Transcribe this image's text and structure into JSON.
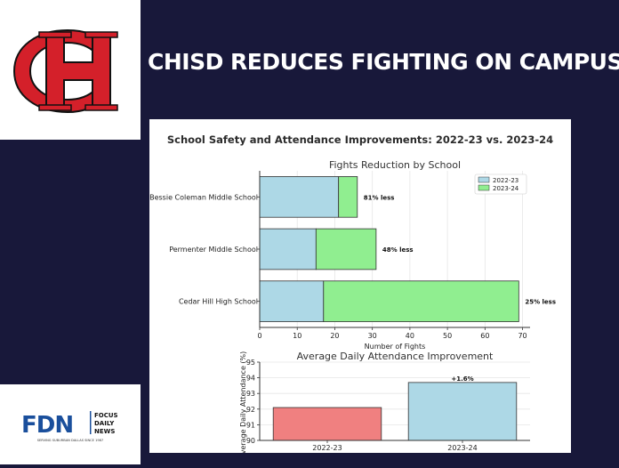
{
  "headline": "CHISD REDUCES FIGHTING ON CAMPUSES",
  "logo": {
    "mark": "CH",
    "name": "chisd-logo"
  },
  "publisher": {
    "abbr": "FDN",
    "line1": "FOCUS",
    "line2": "DAILY",
    "line3": "NEWS",
    "tagline": "SERVING SUBURBAN DALLAS SINCE 1987"
  },
  "colors": {
    "background": "#18183a",
    "logo_red": "#d4202a",
    "bar_2022": "#add8e6",
    "bar_2023": "#90ee90",
    "bar_attend_2022": "#f08080",
    "fdn_blue": "#1a4f9c"
  },
  "figure_title": "School Safety and Attendance Improvements: 2022-23 vs. 2023-24",
  "chart_data": [
    {
      "type": "bar",
      "orientation": "horizontal",
      "stacked": true,
      "title": "Fights Reduction by School",
      "xlabel": "Number of Fights",
      "ylabel": "",
      "xlim": [
        0,
        72
      ],
      "xticks": [
        "0",
        "10",
        "20",
        "30",
        "40",
        "50",
        "60",
        "70"
      ],
      "grid": true,
      "legend_position": "top-right",
      "categories": [
        "Bessie Coleman Middle School",
        "Permenter Middle School",
        "Cedar Hill High School"
      ],
      "series": [
        {
          "name": "2022-23",
          "values": [
            21,
            15,
            17
          ]
        },
        {
          "name": "2023-24",
          "values": [
            5,
            16,
            52
          ]
        }
      ],
      "annotations": [
        "81% less",
        "48% less",
        "25% less"
      ]
    },
    {
      "type": "bar",
      "title": "Average Daily Attendance Improvement",
      "xlabel": "",
      "ylabel": "Average Daily Attendance (%)",
      "ylim": [
        90,
        95
      ],
      "yticks": [
        "90",
        "91",
        "92",
        "93",
        "94",
        "95"
      ],
      "grid": true,
      "categories": [
        "2022-23",
        "2023-24"
      ],
      "values": [
        92.1,
        93.7
      ],
      "annotations": [
        "",
        "+1.6%"
      ]
    }
  ]
}
